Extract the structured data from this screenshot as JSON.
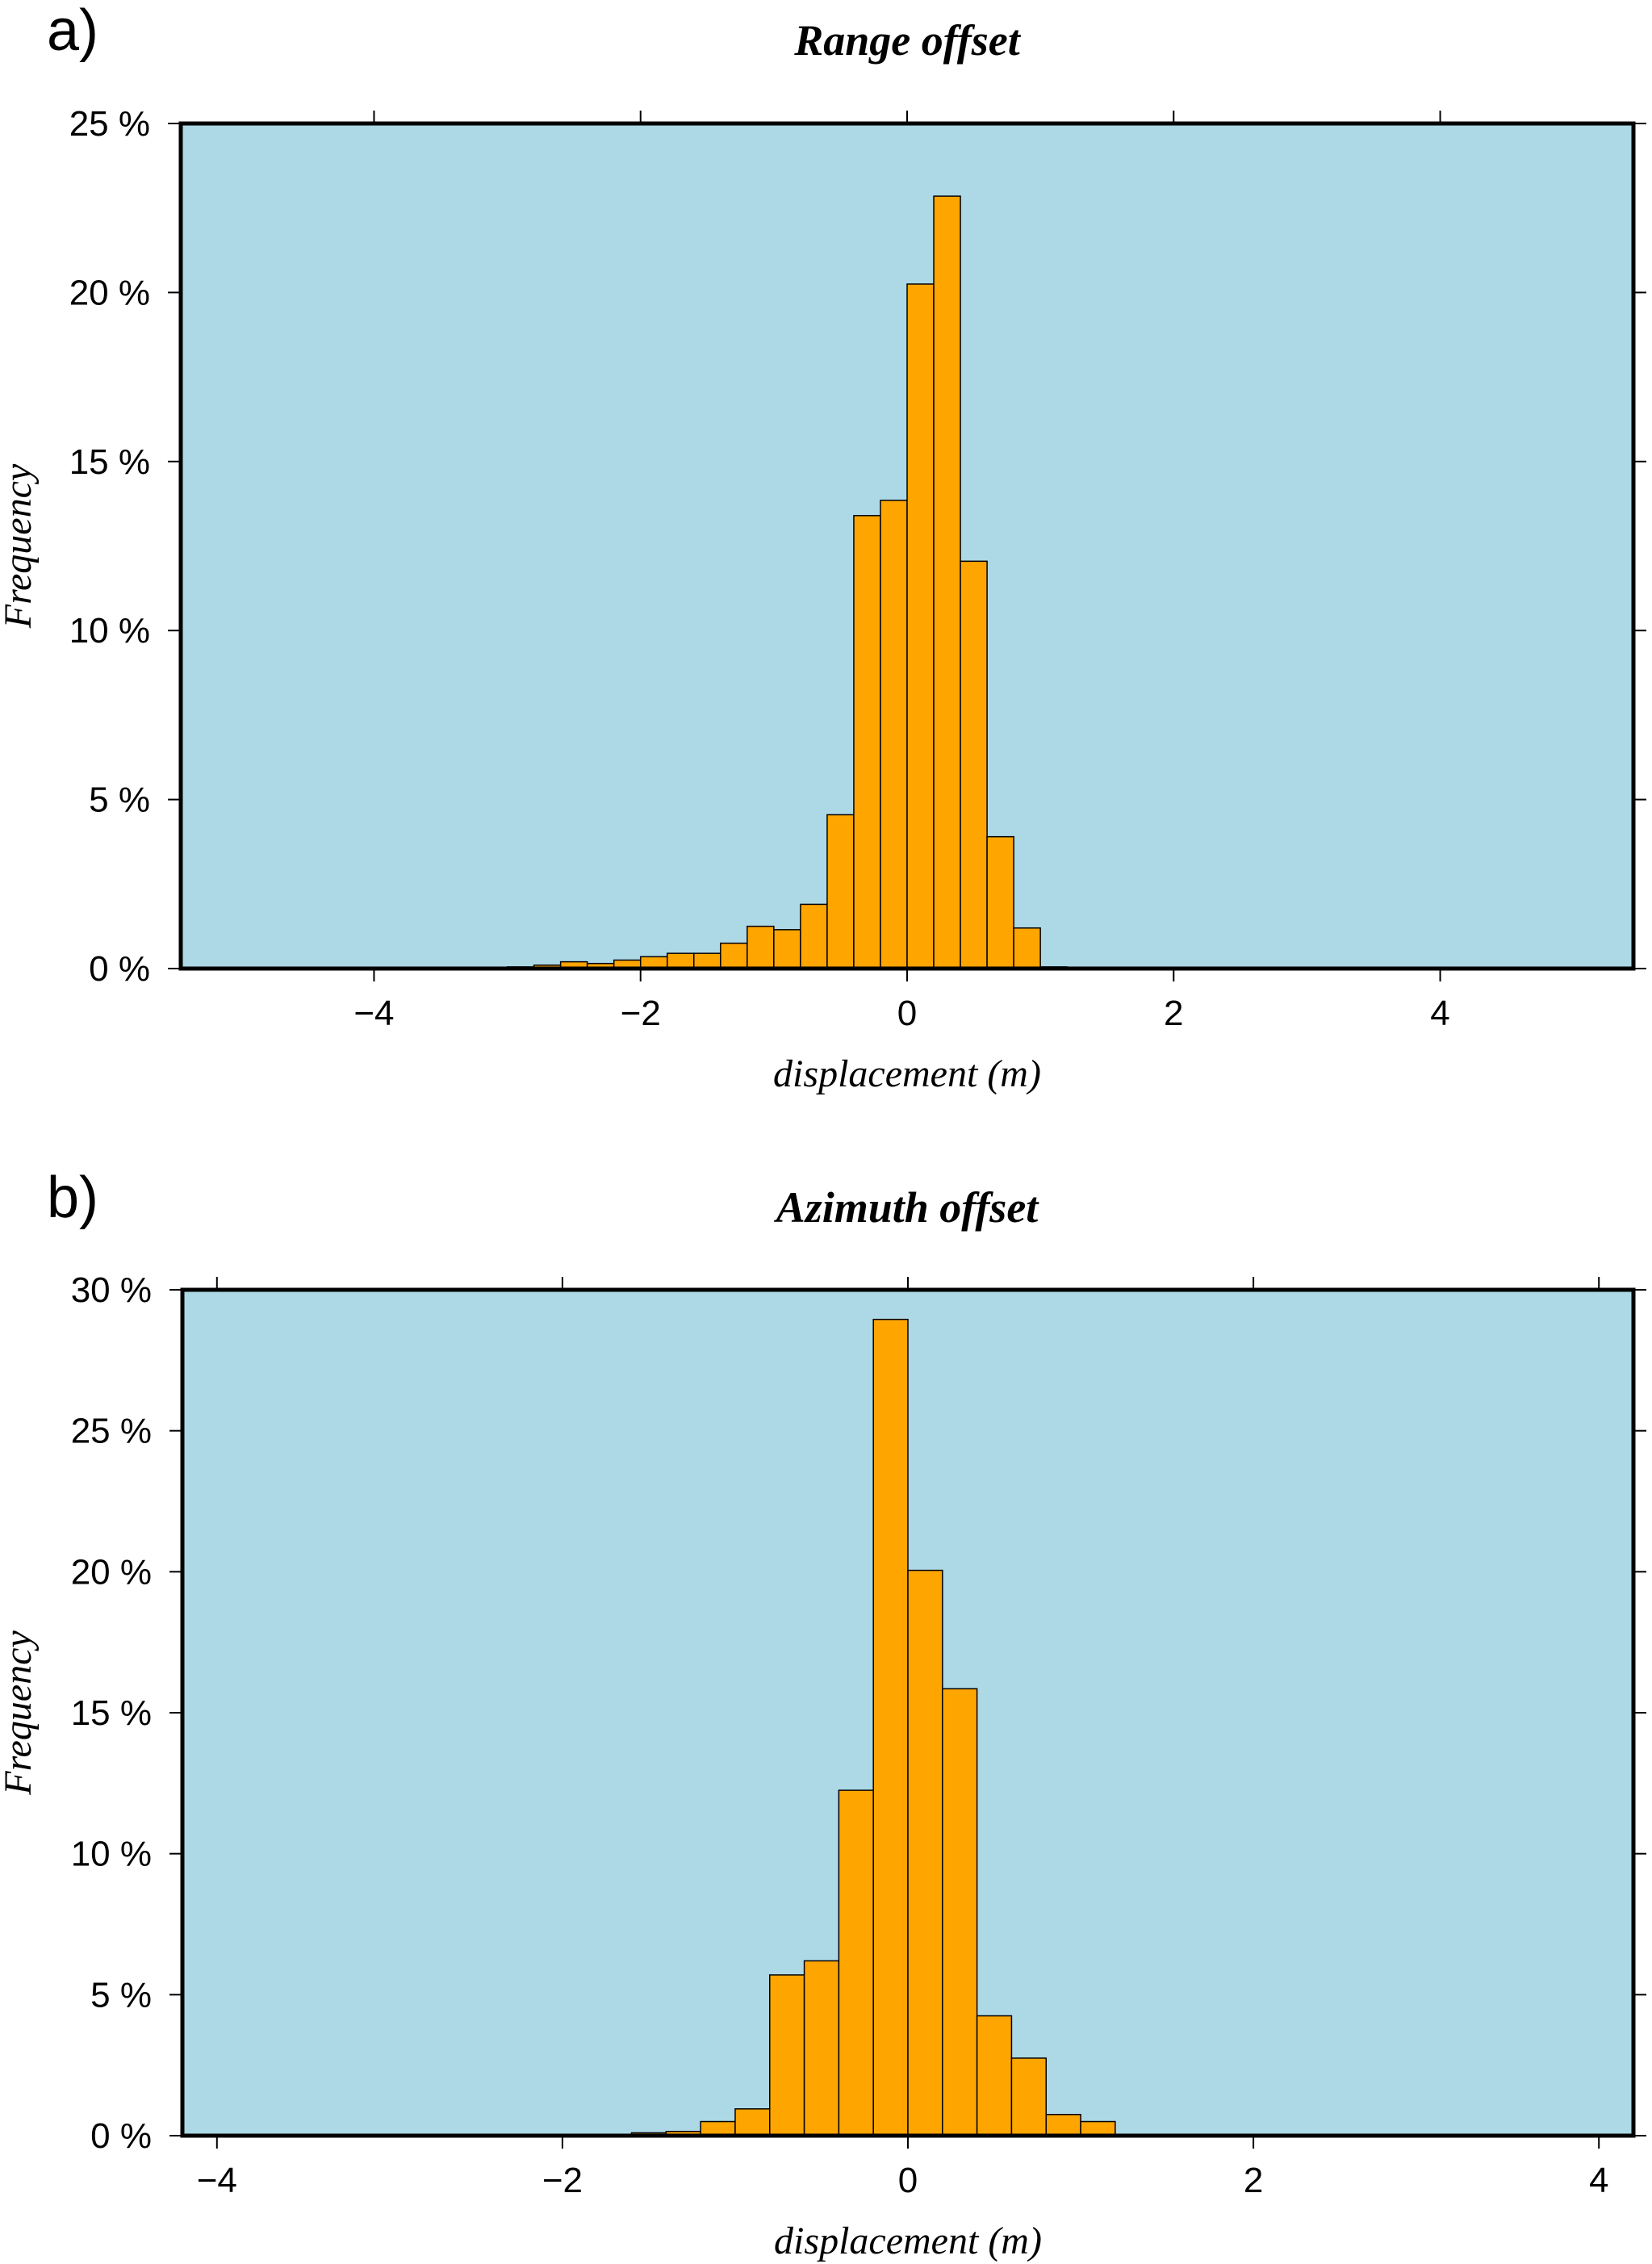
{
  "chart_data": [
    {
      "type": "bar",
      "panel_label": "a)",
      "title": "Range offset",
      "xlabel": "displacement (m)",
      "ylabel": "Frequency",
      "xlim": [
        -5.45,
        5.45
      ],
      "ylim": [
        0,
        25
      ],
      "xticks": [
        -4,
        -2,
        0,
        2,
        4
      ],
      "xtick_labels": [
        "−4",
        "−2",
        "0",
        "2",
        "4"
      ],
      "yticks": [
        0,
        5,
        10,
        15,
        20,
        25
      ],
      "ytick_labels": [
        "0 %",
        "5 %",
        "10 %",
        "15 %",
        "20 %",
        "25 %"
      ],
      "bin_width": 0.2,
      "bin_starts": [
        -3.0,
        -2.8,
        -2.6,
        -2.4,
        -2.2,
        -2.0,
        -1.8,
        -1.6,
        -1.4,
        -1.2,
        -1.0,
        -0.8,
        -0.6,
        -0.4,
        -0.2,
        0.0,
        0.2,
        0.4,
        0.6,
        0.8,
        1.0
      ],
      "values": [
        0.05,
        0.1,
        0.2,
        0.15,
        0.25,
        0.35,
        0.45,
        0.45,
        0.75,
        1.25,
        1.15,
        1.9,
        4.55,
        13.4,
        13.85,
        20.25,
        22.85,
        12.05,
        3.9,
        1.2,
        0.05
      ],
      "colors": {
        "background": "#add8e6",
        "bar": "#ffa500",
        "frame": "#000000"
      },
      "grid": false
    },
    {
      "type": "bar",
      "panel_label": "b)",
      "title": "Azimuth offset",
      "xlabel": "displacement (m)",
      "ylabel": "Frequency",
      "xlim": [
        -4.2,
        4.2
      ],
      "ylim": [
        0,
        30
      ],
      "xticks": [
        -4,
        -2,
        0,
        2,
        4
      ],
      "xtick_labels": [
        "−4",
        "−2",
        "0",
        "2",
        "4"
      ],
      "yticks": [
        0,
        5,
        10,
        15,
        20,
        25,
        30
      ],
      "ytick_labels": [
        "0 %",
        "5 %",
        "10 %",
        "15 %",
        "20 %",
        "25 %",
        "30 %"
      ],
      "bin_width": 0.2,
      "bin_starts": [
        -1.6,
        -1.4,
        -1.2,
        -1.0,
        -0.8,
        -0.6,
        -0.4,
        -0.2,
        0.0,
        0.2,
        0.4,
        0.6,
        0.8,
        1.0,
        1.2
      ],
      "values": [
        0.1,
        0.15,
        0.5,
        0.95,
        5.7,
        6.2,
        12.25,
        28.95,
        20.05,
        15.85,
        4.25,
        2.75,
        0.75,
        0.5,
        0.05
      ],
      "colors": {
        "background": "#add8e6",
        "bar": "#ffa500",
        "frame": "#000000"
      },
      "grid": false
    }
  ]
}
